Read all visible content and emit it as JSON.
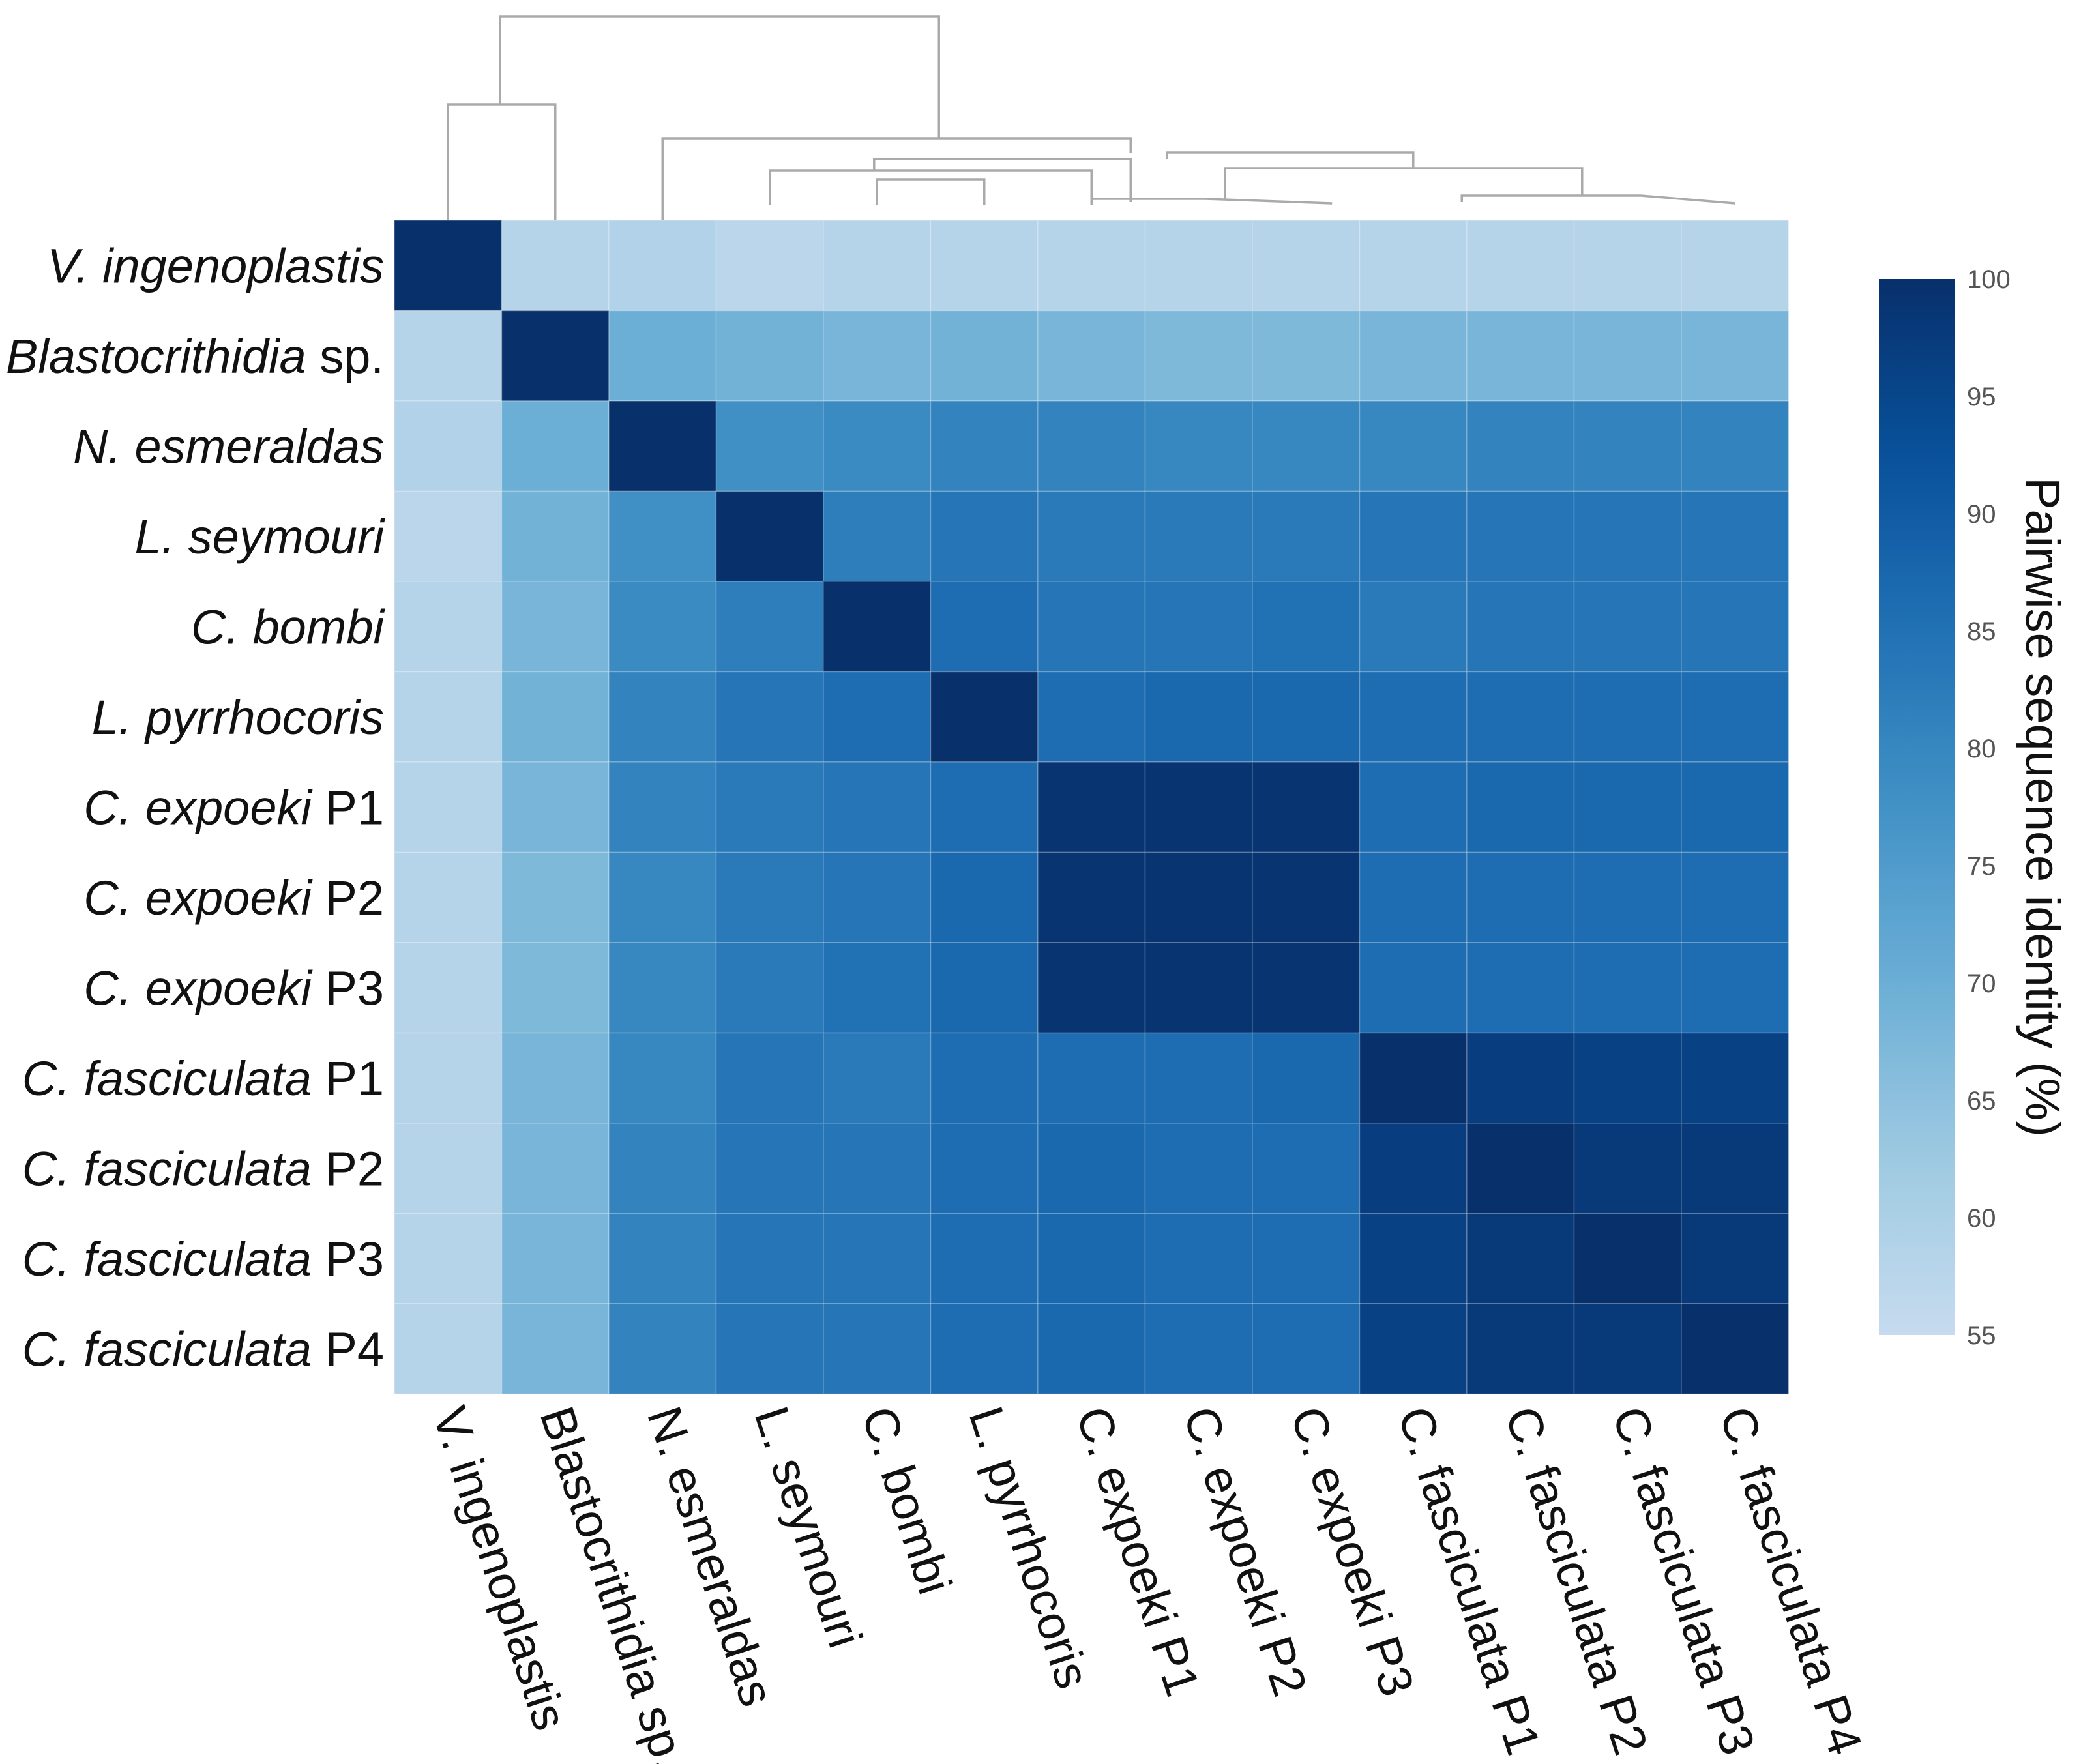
{
  "chart_data": {
    "type": "heatmap",
    "title": "",
    "labels": [
      {
        "species": "V. ingenoplastis",
        "suffix": ""
      },
      {
        "species": "Blastocrithidia",
        "suffix": " sp."
      },
      {
        "species": "N. esmeraldas",
        "suffix": ""
      },
      {
        "species": "L. seymouri",
        "suffix": ""
      },
      {
        "species": "C. bombi",
        "suffix": ""
      },
      {
        "species": "L. pyrrhocoris",
        "suffix": ""
      },
      {
        "species": "C. expoeki",
        "suffix": " P1"
      },
      {
        "species": "C. expoeki",
        "suffix": " P2"
      },
      {
        "species": "C. expoeki",
        "suffix": " P3"
      },
      {
        "species": "C. fasciculata",
        "suffix": " P1"
      },
      {
        "species": "C. fasciculata",
        "suffix": " P2"
      },
      {
        "species": "C. fasciculata",
        "suffix": " P3"
      },
      {
        "species": "C. fasciculata",
        "suffix": " P4"
      }
    ],
    "values": [
      [
        100,
        58,
        59,
        57,
        58,
        58,
        58,
        58,
        58,
        58,
        58,
        58,
        58
      ],
      [
        58,
        100,
        70,
        69,
        68,
        69,
        68,
        67,
        67,
        68,
        68,
        68,
        68
      ],
      [
        59,
        70,
        100,
        78,
        79,
        81,
        81,
        80,
        80,
        80,
        81,
        81,
        81
      ],
      [
        57,
        69,
        78,
        100,
        82,
        84,
        83,
        83,
        83,
        84,
        84,
        84,
        84
      ],
      [
        58,
        68,
        79,
        82,
        100,
        86,
        84,
        84,
        85,
        83,
        84,
        84,
        84
      ],
      [
        58,
        69,
        81,
        84,
        86,
        100,
        86,
        87,
        87,
        86,
        86,
        86,
        86
      ],
      [
        58,
        68,
        81,
        83,
        84,
        86,
        99,
        99,
        99,
        86,
        87,
        87,
        87
      ],
      [
        58,
        67,
        80,
        83,
        84,
        87,
        99,
        99,
        99,
        86,
        86,
        86,
        86
      ],
      [
        58,
        67,
        80,
        83,
        85,
        87,
        99,
        99,
        99,
        86,
        86,
        86,
        86
      ],
      [
        58,
        68,
        80,
        84,
        83,
        86,
        86,
        86,
        87,
        100,
        97,
        96,
        96
      ],
      [
        58,
        68,
        81,
        84,
        84,
        86,
        87,
        86,
        86,
        97,
        100,
        98,
        98
      ],
      [
        58,
        68,
        81,
        84,
        84,
        86,
        87,
        86,
        86,
        96,
        98,
        100,
        98
      ],
      [
        58,
        68,
        81,
        84,
        84,
        86,
        87,
        86,
        86,
        96,
        98,
        98,
        100
      ]
    ],
    "colorbar": {
      "label": "Pairwise sequence identity (%)",
      "min": 55,
      "max": 100,
      "ticks": [
        "100",
        "95",
        "90",
        "85",
        "80",
        "75",
        "70",
        "65",
        "60",
        "55"
      ],
      "color_low": "#c6dbef",
      "color_high": "#08306b"
    },
    "dendrogram": true
  }
}
